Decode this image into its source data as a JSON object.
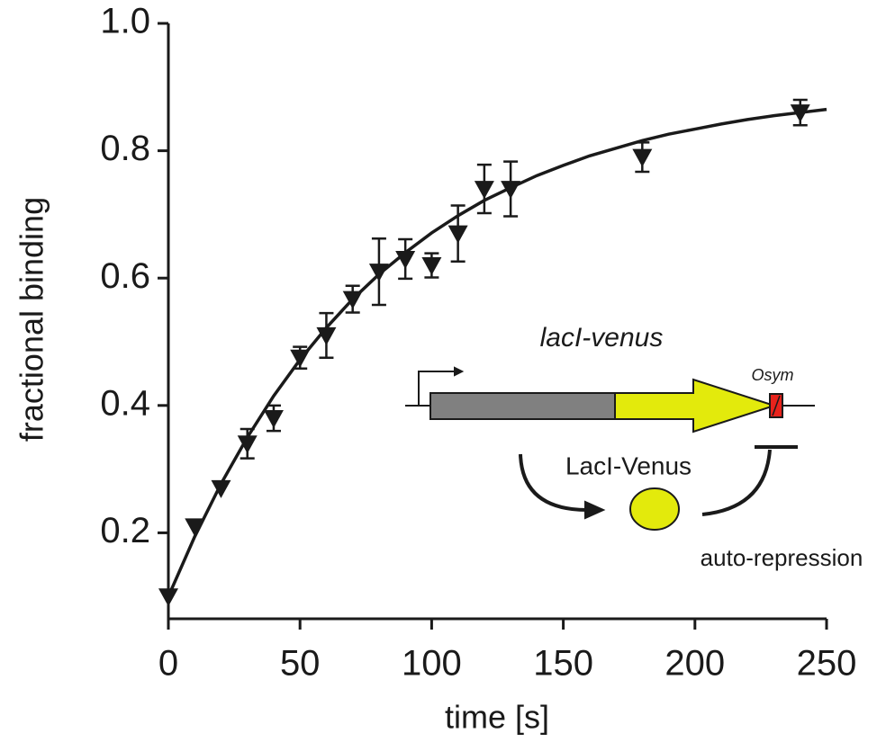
{
  "chart_data": {
    "type": "scatter",
    "xlabel": "time [s]",
    "ylabel": "fractional binding",
    "xlim": [
      0,
      250
    ],
    "xticks": [
      0,
      50,
      100,
      150,
      200,
      250
    ],
    "ylim": [
      0.065,
      1.0
    ],
    "yticks": [
      0.2,
      0.4,
      0.6,
      0.8,
      {
        "value": 1,
        "label": "1.0"
      }
    ],
    "color": "#1a1a1a",
    "points": {
      "x": [
        0,
        10,
        20,
        30,
        40,
        50,
        60,
        70,
        80,
        90,
        100,
        110,
        120,
        130,
        180,
        240
      ],
      "values": [
        0.1,
        0.21,
        0.27,
        0.34,
        0.38,
        0.475,
        0.51,
        0.567,
        0.61,
        0.63,
        0.62,
        0.67,
        0.74,
        0.74,
        0.79,
        0.86
      ],
      "errors": [
        0,
        0,
        0,
        0.023,
        0.02,
        0.017,
        0.035,
        0.021,
        0.052,
        0.031,
        0.019,
        0.044,
        0.038,
        0.043,
        0.023,
        0.02
      ]
    },
    "fit": {
      "x": [
        0,
        10,
        20,
        30,
        40,
        50,
        60,
        70,
        80,
        90,
        100,
        110,
        120,
        130,
        140,
        150,
        160,
        170,
        180,
        190,
        200,
        210,
        220,
        230,
        240,
        250
      ],
      "values": [
        0.1,
        0.194,
        0.277,
        0.35,
        0.415,
        0.472,
        0.522,
        0.567,
        0.606,
        0.64,
        0.671,
        0.698,
        0.722,
        0.742,
        0.761,
        0.777,
        0.792,
        0.804,
        0.816,
        0.826,
        0.834,
        0.842,
        0.849,
        0.855,
        0.86,
        0.865
      ]
    },
    "inset": {
      "gene": "lacI-venus",
      "operator": "Osym",
      "protein": "LacI-Venus",
      "note": "auto-repression"
    }
  }
}
